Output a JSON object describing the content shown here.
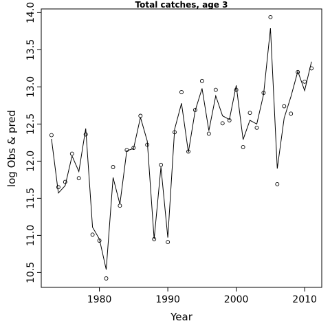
{
  "chart_data": {
    "type": "line",
    "title": "Total catches, age 3",
    "xlabel": "Year",
    "ylabel": "log Obs & pred",
    "xlim": [
      1971.5,
      2012.5
    ],
    "ylim": [
      10.3,
      14.05
    ],
    "x_ticks": [
      1980,
      1990,
      2000,
      2010
    ],
    "y_ticks": [
      10.5,
      11.0,
      11.5,
      12.0,
      12.5,
      13.0,
      13.5,
      14.0
    ],
    "y_tick_labels": [
      "10.5",
      "11.0",
      "11.5",
      "12.0",
      "12.5",
      "13.0",
      "13.5",
      "14.0"
    ],
    "grid": false,
    "series": [
      {
        "style": "points",
        "marker": "open-circle",
        "x": [
          1973,
          1974,
          1975,
          1976,
          1977,
          1978,
          1979,
          1980,
          1981,
          1982,
          1983,
          1984,
          1985,
          1986,
          1987,
          1988,
          1989,
          1990,
          1991,
          1992,
          1993,
          1994,
          1995,
          1996,
          1997,
          1998,
          1999,
          2000,
          2001,
          2002,
          2003,
          2004,
          2005,
          2006,
          2007,
          2008,
          2009,
          2010,
          2011
        ],
        "y": [
          12.35,
          11.65,
          11.72,
          12.1,
          11.77,
          12.36,
          11.01,
          10.93,
          10.42,
          11.92,
          11.4,
          12.15,
          12.18,
          12.61,
          12.22,
          10.95,
          11.95,
          10.91,
          12.39,
          12.93,
          12.13,
          12.69,
          13.08,
          12.37,
          12.96,
          12.51,
          12.55,
          12.96,
          12.19,
          12.65,
          12.45,
          12.92,
          13.94,
          11.69,
          12.74,
          12.64,
          13.2,
          13.07,
          13.25
        ]
      },
      {
        "style": "line",
        "x": [
          1973,
          1974,
          1975,
          1976,
          1977,
          1978,
          1979,
          1980,
          1981,
          1982,
          1983,
          1984,
          1985,
          1986,
          1987,
          1988,
          1989,
          1990,
          1991,
          1992,
          1993,
          1994,
          1995,
          1996,
          1997,
          1998,
          1999,
          2000,
          2001,
          2002,
          2003,
          2004,
          2005,
          2006,
          2007,
          2008,
          2009,
          2010,
          2011
        ],
        "y": [
          12.3,
          11.57,
          11.67,
          12.07,
          11.86,
          12.44,
          11.11,
          10.95,
          10.54,
          11.78,
          11.42,
          12.14,
          12.17,
          12.59,
          12.27,
          10.95,
          11.92,
          10.97,
          12.43,
          12.78,
          12.12,
          12.68,
          12.98,
          12.41,
          12.88,
          12.61,
          12.56,
          13.02,
          12.29,
          12.55,
          12.5,
          12.9,
          13.79,
          11.9,
          12.58,
          12.87,
          13.21,
          12.95,
          13.34
        ]
      }
    ]
  }
}
